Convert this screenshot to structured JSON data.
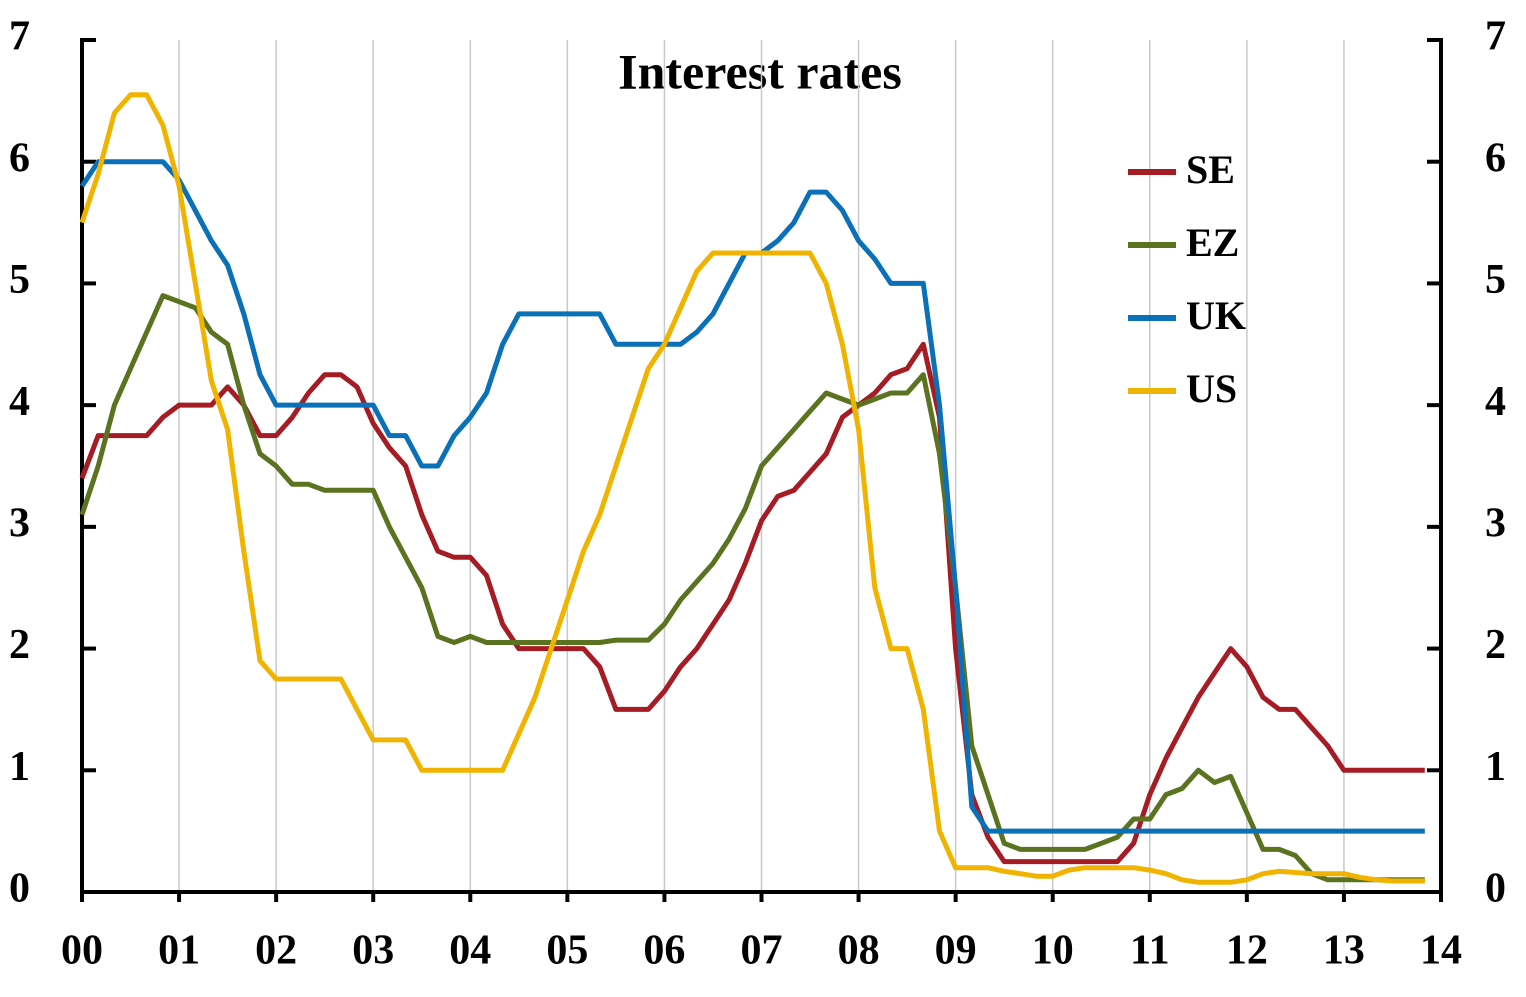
{
  "chart_data": {
    "type": "line",
    "title": "Interest rates",
    "x": [
      0,
      2,
      4,
      6,
      8,
      10,
      12,
      14,
      16,
      18,
      20,
      22,
      24,
      26,
      28,
      30,
      32,
      34,
      36,
      38,
      40,
      42,
      44,
      46,
      48,
      50,
      52,
      54,
      56,
      58,
      60,
      62,
      64,
      66,
      68,
      70,
      72,
      74,
      76,
      78,
      80,
      82,
      84,
      86,
      88,
      90,
      92,
      94,
      96,
      98,
      100,
      102,
      104,
      106,
      108,
      110,
      112,
      114,
      116,
      118,
      120,
      122,
      124,
      126,
      128,
      130,
      132,
      134,
      136,
      138,
      140,
      142,
      144,
      146,
      148,
      150,
      152,
      154,
      156,
      158,
      160,
      162,
      164,
      166
    ],
    "xlim": [
      0,
      168
    ],
    "xticks": [
      {
        "value": 0,
        "label": "00"
      },
      {
        "value": 12,
        "label": "01"
      },
      {
        "value": 24,
        "label": "02"
      },
      {
        "value": 36,
        "label": "03"
      },
      {
        "value": 48,
        "label": "04"
      },
      {
        "value": 60,
        "label": "05"
      },
      {
        "value": 72,
        "label": "06"
      },
      {
        "value": 84,
        "label": "07"
      },
      {
        "value": 96,
        "label": "08"
      },
      {
        "value": 108,
        "label": "09"
      },
      {
        "value": 120,
        "label": "10"
      },
      {
        "value": 132,
        "label": "11"
      },
      {
        "value": 144,
        "label": "12"
      },
      {
        "value": 156,
        "label": "13"
      },
      {
        "value": 168,
        "label": "14"
      }
    ],
    "ylim": [
      0,
      7
    ],
    "yticks": [
      0,
      1,
      2,
      3,
      4,
      5,
      6,
      7
    ],
    "y2lim": [
      0,
      7
    ],
    "y2ticks": [
      0,
      1,
      2,
      3,
      4,
      5,
      6,
      7
    ],
    "grid": "x",
    "legend": "upper right",
    "series": [
      {
        "name": "SE",
        "color": "#a51c24",
        "values": [
          3.4,
          3.75,
          3.75,
          3.75,
          3.75,
          3.9,
          4.0,
          4.0,
          4.0,
          4.15,
          4.0,
          3.75,
          3.75,
          3.9,
          4.1,
          4.25,
          4.25,
          4.15,
          3.85,
          3.65,
          3.5,
          3.1,
          2.8,
          2.75,
          2.75,
          2.6,
          2.2,
          2.0,
          2.0,
          2.0,
          2.0,
          2.0,
          1.85,
          1.5,
          1.5,
          1.5,
          1.65,
          1.85,
          2.0,
          2.2,
          2.4,
          2.7,
          3.05,
          3.25,
          3.3,
          3.45,
          3.6,
          3.9,
          4.0,
          4.1,
          4.25,
          4.3,
          4.5,
          3.9,
          2.0,
          0.8,
          0.45,
          0.25,
          0.25,
          0.25,
          0.25,
          0.25,
          0.25,
          0.25,
          0.25,
          0.4,
          0.8,
          1.1,
          1.35,
          1.6,
          1.8,
          2.0,
          1.85,
          1.6,
          1.5,
          1.5,
          1.35,
          1.2,
          1.0,
          1.0,
          1.0,
          1.0,
          1.0,
          1.0
        ]
      },
      {
        "name": "EZ",
        "color": "#5b7320",
        "values": [
          3.1,
          3.5,
          4.0,
          4.3,
          4.6,
          4.9,
          4.85,
          4.8,
          4.6,
          4.5,
          4.0,
          3.6,
          3.5,
          3.35,
          3.35,
          3.3,
          3.3,
          3.3,
          3.3,
          3.0,
          2.75,
          2.5,
          2.1,
          2.05,
          2.1,
          2.05,
          2.05,
          2.05,
          2.05,
          2.05,
          2.05,
          2.05,
          2.05,
          2.07,
          2.07,
          2.07,
          2.2,
          2.4,
          2.55,
          2.7,
          2.9,
          3.15,
          3.5,
          3.65,
          3.8,
          3.95,
          4.1,
          4.05,
          4.0,
          4.05,
          4.1,
          4.1,
          4.25,
          3.6,
          2.5,
          1.2,
          0.8,
          0.4,
          0.35,
          0.35,
          0.35,
          0.35,
          0.35,
          0.4,
          0.45,
          0.6,
          0.6,
          0.8,
          0.85,
          1.0,
          0.9,
          0.95,
          0.65,
          0.35,
          0.35,
          0.3,
          0.15,
          0.1,
          0.1,
          0.1,
          0.1,
          0.1,
          0.1,
          0.1
        ]
      },
      {
        "name": "UK",
        "color": "#0a70b8",
        "values": [
          5.8,
          6.0,
          6.0,
          6.0,
          6.0,
          6.0,
          5.85,
          5.6,
          5.35,
          5.15,
          4.75,
          4.25,
          4.0,
          4.0,
          4.0,
          4.0,
          4.0,
          4.0,
          4.0,
          3.75,
          3.75,
          3.5,
          3.5,
          3.75,
          3.9,
          4.1,
          4.5,
          4.75,
          4.75,
          4.75,
          4.75,
          4.75,
          4.75,
          4.5,
          4.5,
          4.5,
          4.5,
          4.5,
          4.6,
          4.75,
          5.0,
          5.25,
          5.25,
          5.35,
          5.5,
          5.75,
          5.75,
          5.6,
          5.35,
          5.2,
          5.0,
          5.0,
          5.0,
          4.0,
          2.5,
          0.7,
          0.5,
          0.5,
          0.5,
          0.5,
          0.5,
          0.5,
          0.5,
          0.5,
          0.5,
          0.5,
          0.5,
          0.5,
          0.5,
          0.5,
          0.5,
          0.5,
          0.5,
          0.5,
          0.5,
          0.5,
          0.5,
          0.5,
          0.5,
          0.5,
          0.5,
          0.5,
          0.5,
          0.5
        ]
      },
      {
        "name": "US",
        "color": "#f0b400",
        "values": [
          5.5,
          5.9,
          6.4,
          6.55,
          6.55,
          6.3,
          5.8,
          5.0,
          4.2,
          3.8,
          2.8,
          1.9,
          1.75,
          1.75,
          1.75,
          1.75,
          1.75,
          1.5,
          1.25,
          1.25,
          1.25,
          1.0,
          1.0,
          1.0,
          1.0,
          1.0,
          1.0,
          1.3,
          1.6,
          2.0,
          2.4,
          2.8,
          3.1,
          3.5,
          3.9,
          4.3,
          4.5,
          4.8,
          5.1,
          5.25,
          5.25,
          5.25,
          5.25,
          5.25,
          5.25,
          5.25,
          5.0,
          4.5,
          3.8,
          2.5,
          2.0,
          2.0,
          1.5,
          0.5,
          0.2,
          0.2,
          0.2,
          0.17,
          0.15,
          0.13,
          0.13,
          0.18,
          0.2,
          0.2,
          0.2,
          0.2,
          0.18,
          0.15,
          0.1,
          0.08,
          0.08,
          0.08,
          0.1,
          0.15,
          0.17,
          0.16,
          0.15,
          0.15,
          0.15,
          0.12,
          0.1,
          0.09,
          0.09,
          0.09
        ]
      }
    ]
  }
}
